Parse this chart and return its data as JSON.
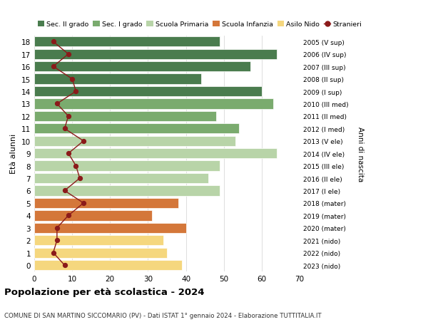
{
  "ages": [
    18,
    17,
    16,
    15,
    14,
    13,
    12,
    11,
    10,
    9,
    8,
    7,
    6,
    5,
    4,
    3,
    2,
    1,
    0
  ],
  "right_labels": [
    "2005 (V sup)",
    "2006 (IV sup)",
    "2007 (III sup)",
    "2008 (II sup)",
    "2009 (I sup)",
    "2010 (III med)",
    "2011 (II med)",
    "2012 (I med)",
    "2013 (V ele)",
    "2014 (IV ele)",
    "2015 (III ele)",
    "2016 (II ele)",
    "2017 (I ele)",
    "2018 (mater)",
    "2019 (mater)",
    "2020 (mater)",
    "2021 (nido)",
    "2022 (nido)",
    "2023 (nido)"
  ],
  "bar_values": [
    49,
    64,
    57,
    44,
    60,
    63,
    48,
    54,
    53,
    64,
    49,
    46,
    49,
    38,
    31,
    40,
    34,
    35,
    39
  ],
  "stranieri": [
    5,
    9,
    5,
    10,
    11,
    6,
    9,
    8,
    13,
    9,
    11,
    12,
    8,
    13,
    9,
    6,
    6,
    5,
    8
  ],
  "colors": {
    "sec2": "#4a7c4e",
    "sec1": "#7aab6e",
    "primaria": "#b8d4a8",
    "infanzia": "#d4773a",
    "nido": "#f5d77e",
    "stranieri_line": "#8b1a1a",
    "stranieri_dot": "#8b1a1a",
    "bg": "#ffffff",
    "grid": "#d0d0d0"
  },
  "legend_labels": [
    "Sec. II grado",
    "Sec. I grado",
    "Scuola Primaria",
    "Scuola Infanzia",
    "Asilo Nido",
    "Stranieri"
  ],
  "ylabel": "Età alunni",
  "right_ylabel": "Anni di nascita",
  "title": "Popolazione per età scolastica - 2024",
  "subtitle": "COMUNE DI SAN MARTINO SICCOMARIO (PV) - Dati ISTAT 1° gennaio 2024 - Elaborazione TUTTITALIA.IT",
  "xlim": [
    0,
    70
  ],
  "xticks": [
    0,
    10,
    20,
    30,
    40,
    50,
    60,
    70
  ]
}
